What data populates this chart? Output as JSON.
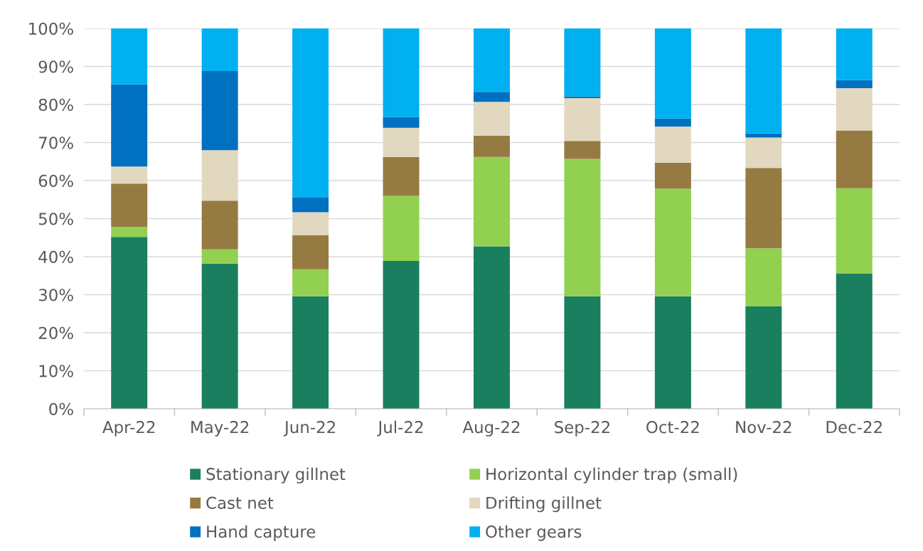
{
  "chart_data": {
    "type": "bar",
    "stacked": true,
    "categories": [
      "Apr-22",
      "May-22",
      "Jun-22",
      "Jul-22",
      "Aug-22",
      "Sep-22",
      "Oct-22",
      "Nov-22",
      "Dec-22"
    ],
    "series": [
      {
        "name": "Stationary gillnet",
        "color": "#1a7f5f",
        "values": [
          45.2,
          38.2,
          29.6,
          38.9,
          42.7,
          29.6,
          29.6,
          26.9,
          35.5
        ]
      },
      {
        "name": "Horizontal cylinder trap (small)",
        "color": "#92d050",
        "values": [
          2.6,
          3.7,
          7.1,
          17.1,
          23.5,
          36.1,
          28.3,
          15.3,
          22.5
        ]
      },
      {
        "name": "Cast net",
        "color": "#957b41",
        "values": [
          11.4,
          12.8,
          8.9,
          10.2,
          5.6,
          4.7,
          6.8,
          21.1,
          15.2
        ]
      },
      {
        "name": "Drifting gillnet",
        "color": "#e2d8c0",
        "values": [
          4.5,
          13.3,
          6.1,
          7.7,
          8.9,
          11.3,
          9.5,
          8.0,
          11.1
        ]
      },
      {
        "name": "Hand capture",
        "color": "#0070c0",
        "values": [
          21.6,
          20.8,
          3.8,
          2.8,
          2.6,
          0.4,
          2.1,
          1.1,
          2.1
        ]
      },
      {
        "name": "Other gears",
        "color": "#00b0f0",
        "values": [
          14.7,
          11.2,
          44.5,
          23.3,
          16.7,
          17.9,
          23.7,
          27.6,
          13.6
        ]
      }
    ],
    "ylim": [
      0,
      100
    ],
    "yticks": [
      {
        "value": 0,
        "label": "0%"
      },
      {
        "value": 10,
        "label": "10%"
      },
      {
        "value": 20,
        "label": "20%"
      },
      {
        "value": 30,
        "label": "30%"
      },
      {
        "value": 40,
        "label": "40%"
      },
      {
        "value": 50,
        "label": "50%"
      },
      {
        "value": 60,
        "label": "60%"
      },
      {
        "value": 70,
        "label": "70%"
      },
      {
        "value": 80,
        "label": "80%"
      },
      {
        "value": 90,
        "label": "90%"
      },
      {
        "value": 100,
        "label": "100%"
      }
    ],
    "grid": "y",
    "legend": "bottom"
  }
}
